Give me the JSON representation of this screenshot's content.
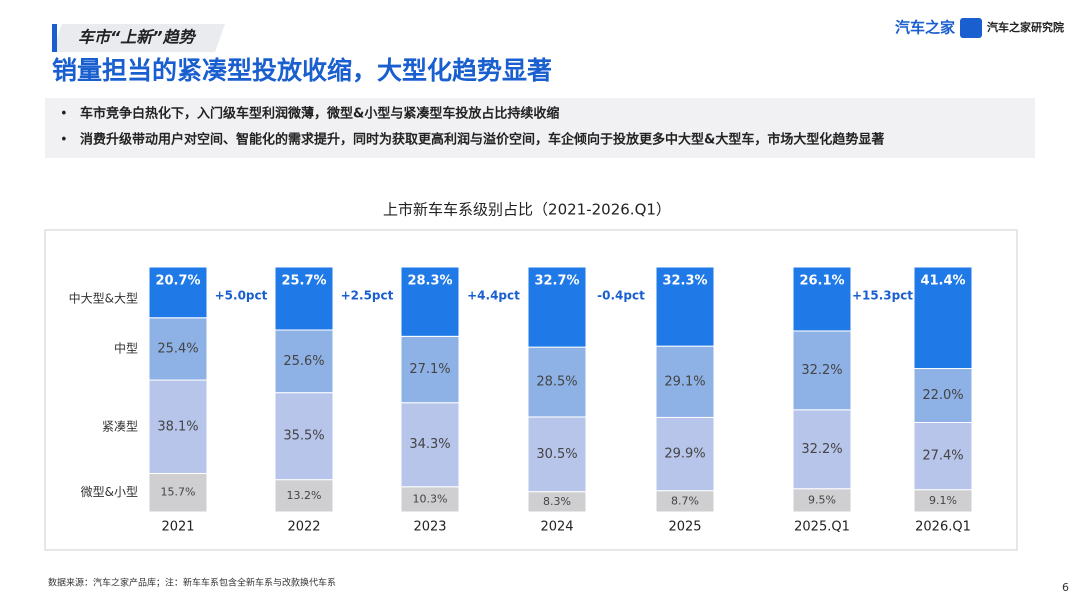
{
  "header": {
    "section": "车市“上新”趋势",
    "title": "销量担当的紧凑型投放收缩，大型化趋势显著",
    "logos": [
      "汽车之家",
      "汽车之家研究院"
    ]
  },
  "bullets": [
    "车市竞争白热化下，入门级车型利润微薄，微型&小型与紧凑型车投放占比持续收缩",
    "消费升级带动用户对空间、智能化的需求提升，同时为获取更高利润与溢价空间，车企倾向于投放更多中大型&大型车，市场大型化趋势显著"
  ],
  "chart_data": {
    "type": "stacked_bar",
    "title": "上市新车车系级别占比（2021-2026.Q1）",
    "categories": [
      "2021",
      "2022",
      "2023",
      "2024",
      "2025",
      "2025.Q1",
      "2026.Q1"
    ],
    "series": [
      {
        "name": "微型&小型",
        "color": "#cfcfd2",
        "values": [
          15.7,
          13.2,
          10.3,
          8.3,
          8.7,
          9.5,
          9.1
        ],
        "value_labels": [
          "15.7%",
          "13.2%",
          "10.3%",
          "8.3%",
          "8.7%",
          "9.5%",
          "9.1%"
        ]
      },
      {
        "name": "紧凑型",
        "color": "#b7c5ea",
        "values": [
          38.1,
          35.5,
          34.3,
          30.5,
          29.9,
          32.2,
          27.4
        ],
        "value_labels": [
          "38.1%",
          "35.5%",
          "34.3%",
          "30.5%",
          "29.9%",
          "32.2%",
          "27.4%"
        ]
      },
      {
        "name": "中型",
        "color": "#8fb2e6",
        "values": [
          25.4,
          25.6,
          27.1,
          28.5,
          29.1,
          32.2,
          22.0
        ],
        "value_labels": [
          "25.4%",
          "25.6%",
          "27.1%",
          "28.5%",
          "29.1%",
          "32.2%",
          "22.0%"
        ]
      },
      {
        "name": "中大型&大型",
        "color": "#1f7ae8",
        "values": [
          20.7,
          25.7,
          28.3,
          32.7,
          32.3,
          26.1,
          41.4
        ],
        "value_labels": [
          "20.7%",
          "25.7%",
          "28.3%",
          "32.7%",
          "32.3%",
          "26.1%",
          "41.4%"
        ]
      }
    ],
    "annotations": [
      "+5.0pct",
      "+2.5pct",
      "+4.4pct",
      "-0.4pct",
      "+15.3pct"
    ]
  },
  "footnote": "数据来源：汽车之家产品库；注：新车车系包含全新车系与改款换代车系",
  "page_number": "6"
}
